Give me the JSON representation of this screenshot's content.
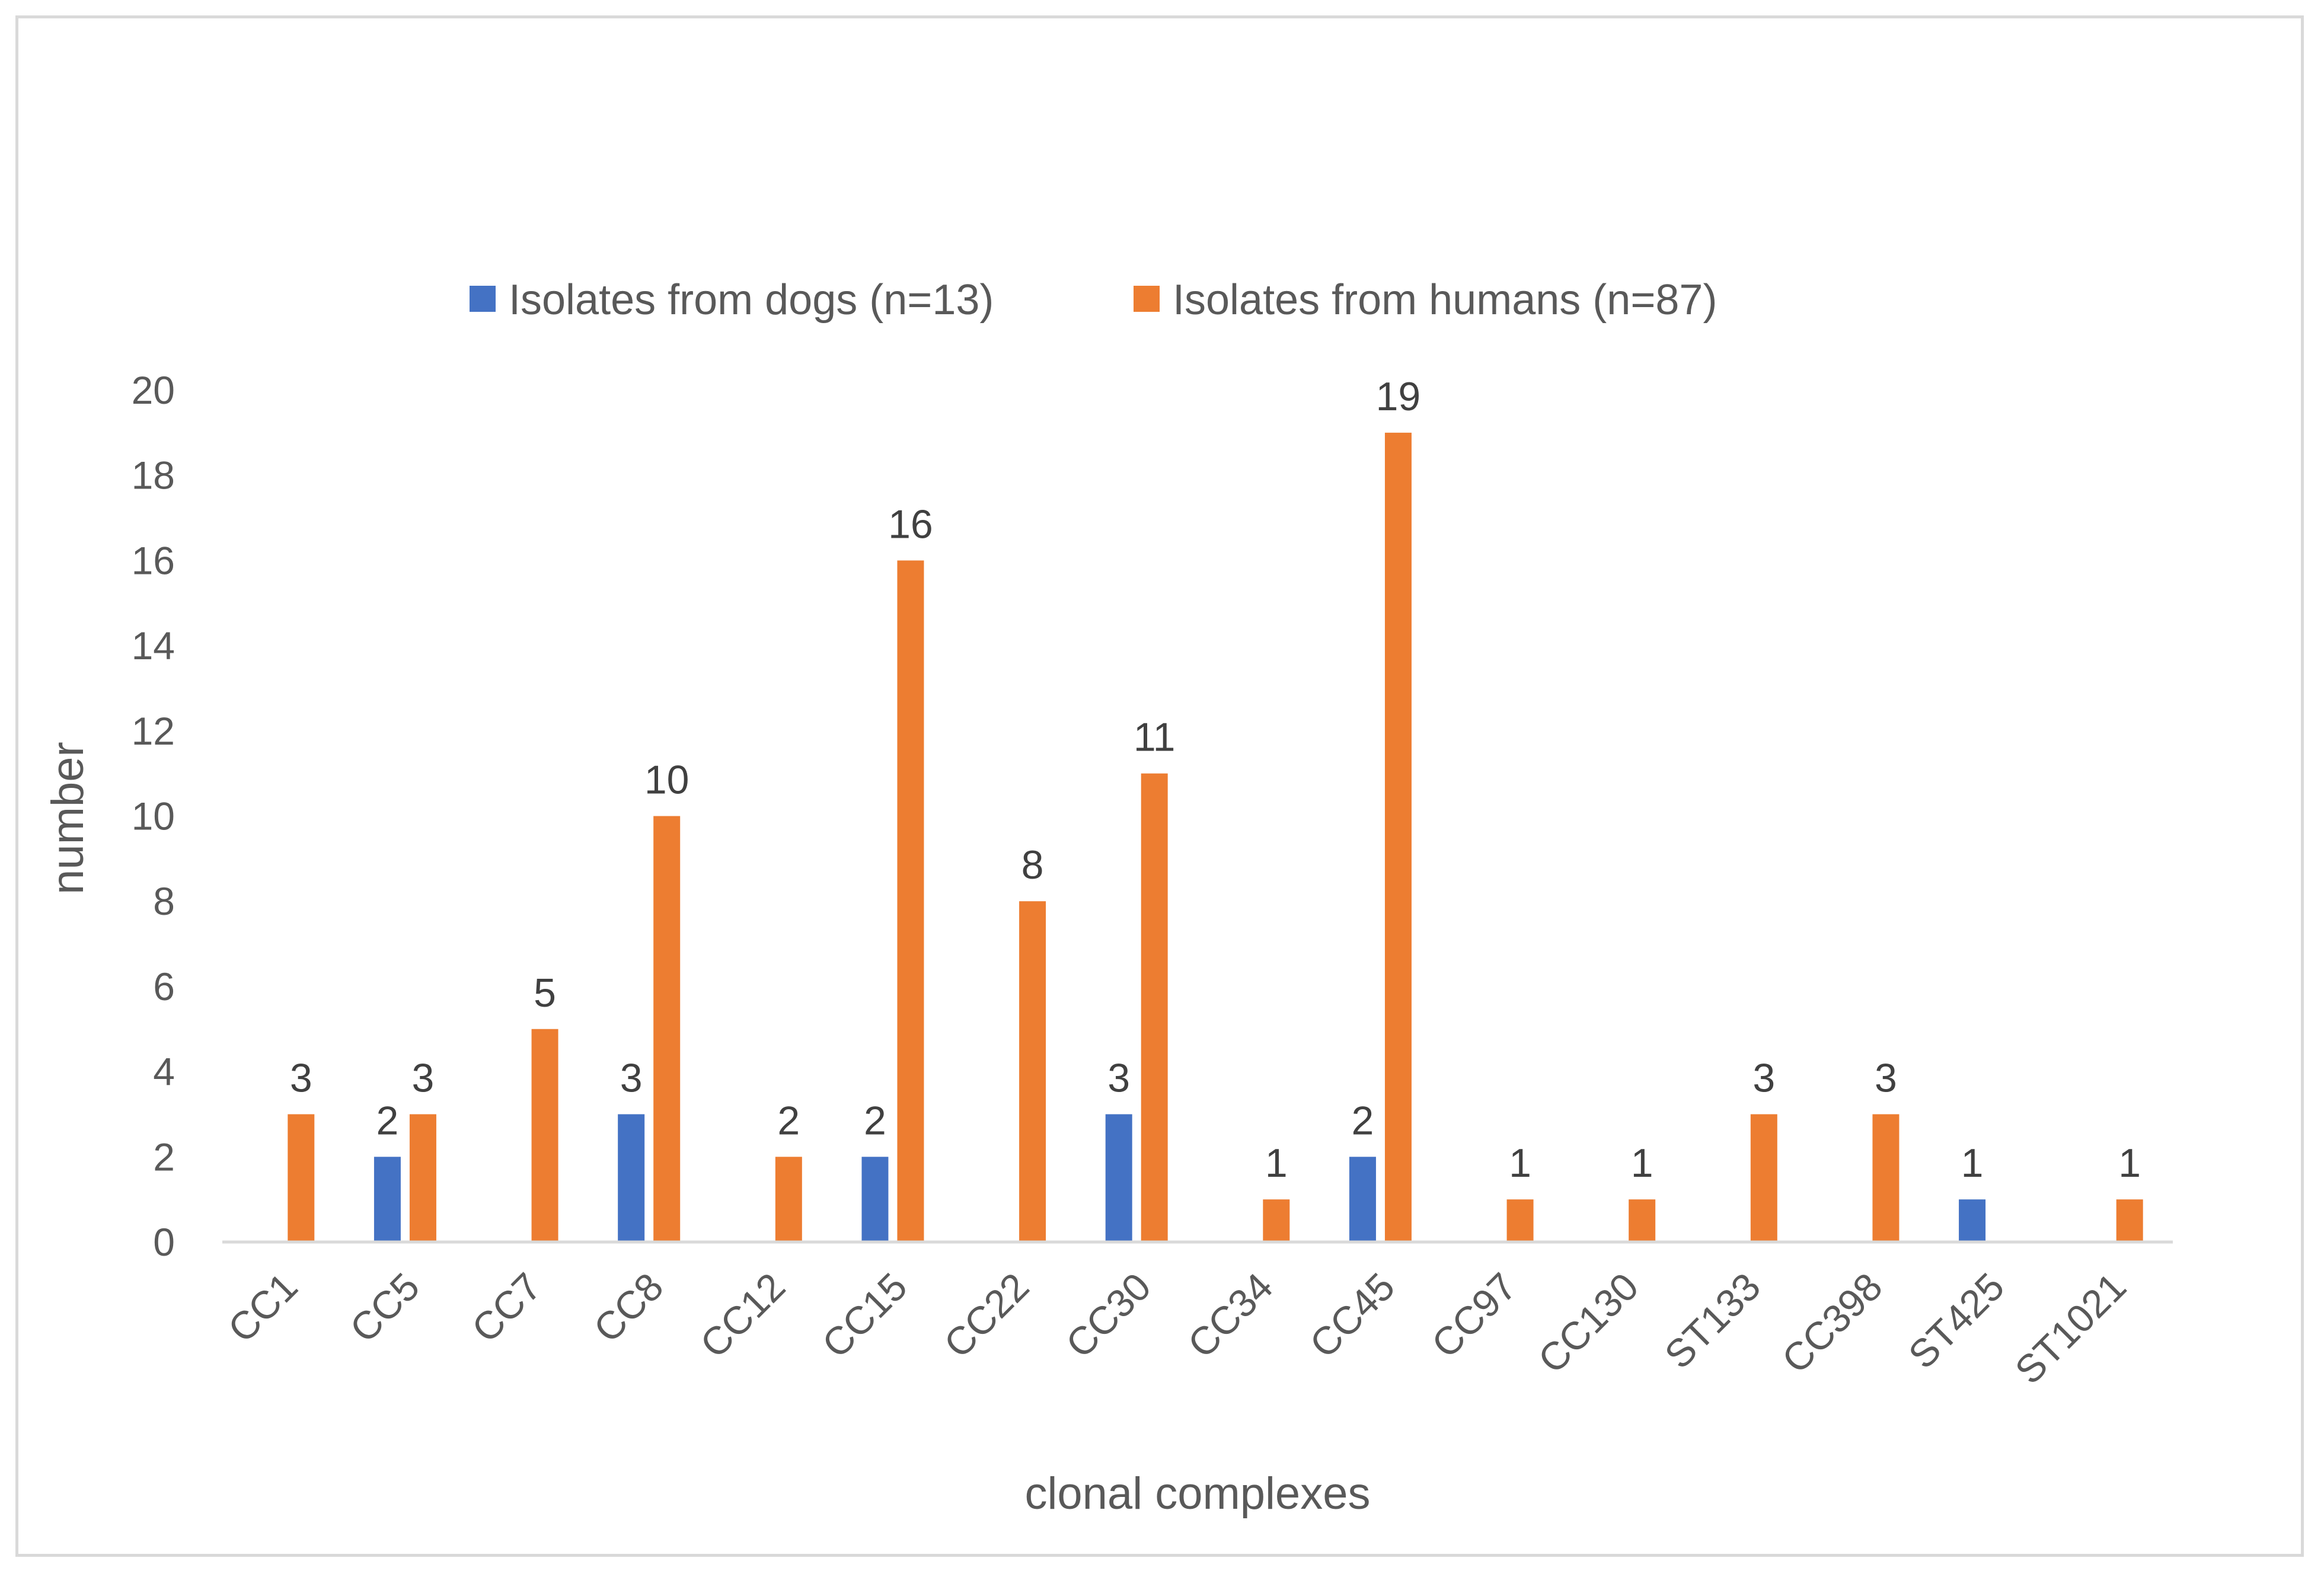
{
  "chart_data": {
    "type": "bar",
    "title": "",
    "xlabel": "clonal complexes",
    "ylabel": "number",
    "ylim": [
      0,
      20
    ],
    "yticks": [
      0,
      2,
      4,
      6,
      8,
      10,
      12,
      14,
      16,
      18,
      20
    ],
    "grid": false,
    "legend_position": "top-center",
    "categories": [
      "CC1",
      "CC5",
      "CC7",
      "CC8",
      "CC12",
      "CC15",
      "CC22",
      "CC30",
      "CC34",
      "CC45",
      "CC97",
      "CC130",
      "ST133",
      "CC398",
      "ST425",
      "ST1021"
    ],
    "series": [
      {
        "name": "Isolates from dogs (n=13)",
        "color": "#4472c4",
        "values": [
          null,
          2,
          null,
          3,
          null,
          2,
          null,
          3,
          null,
          2,
          null,
          null,
          null,
          null,
          1,
          null
        ]
      },
      {
        "name": "Isolates from humans (n=87)",
        "color": "#ed7d31",
        "values": [
          3,
          3,
          5,
          10,
          2,
          16,
          8,
          11,
          1,
          19,
          1,
          1,
          3,
          3,
          null,
          1
        ]
      }
    ]
  }
}
